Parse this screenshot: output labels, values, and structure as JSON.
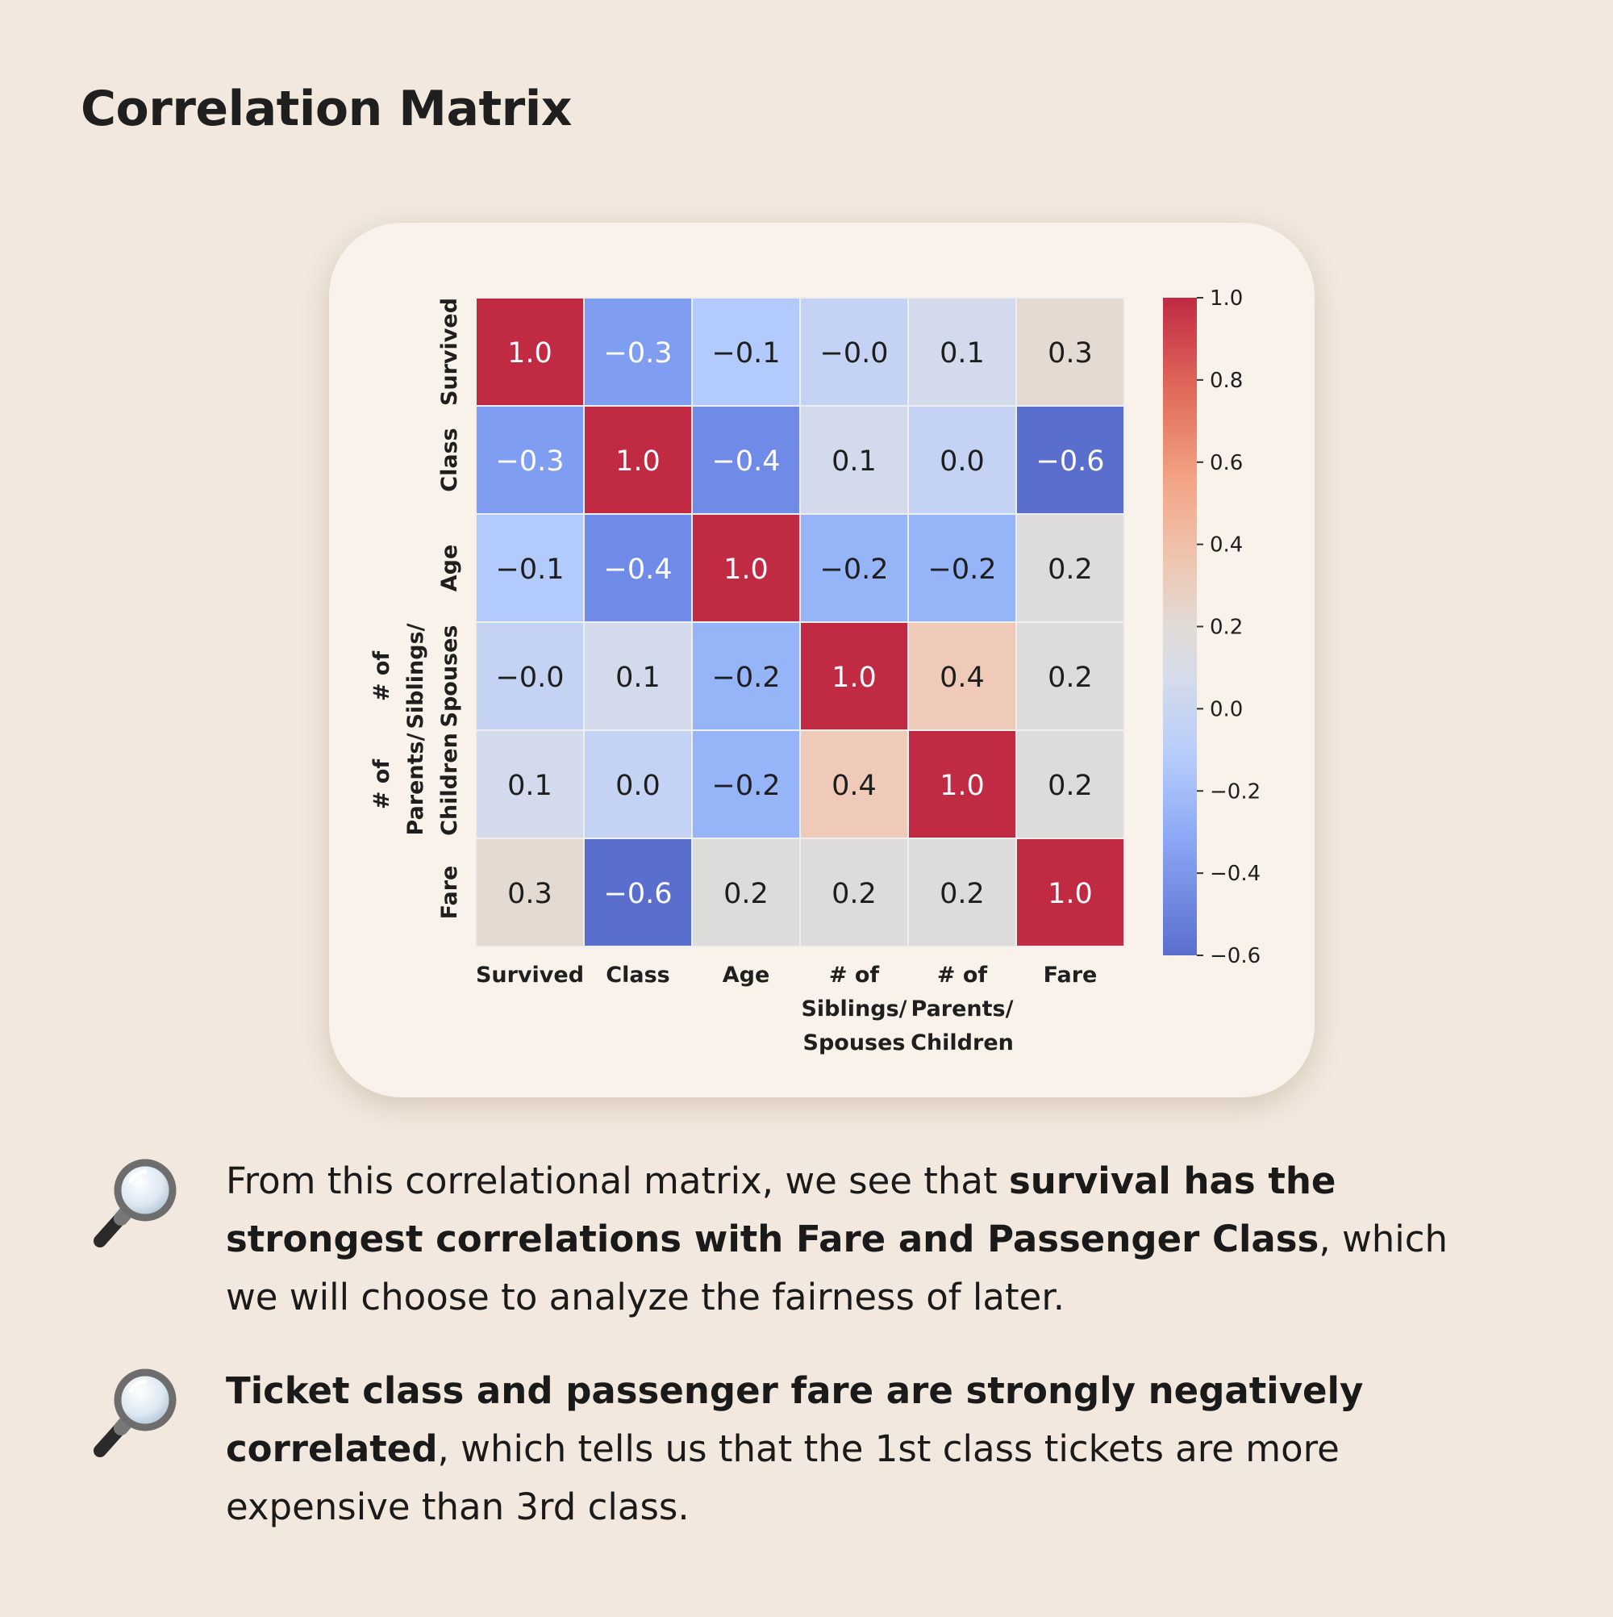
{
  "title": "Correlation Matrix",
  "chart_data": {
    "type": "heatmap",
    "title": "",
    "x_labels": [
      [
        "Survived"
      ],
      [
        "Class"
      ],
      [
        "Age"
      ],
      [
        "# of",
        "Siblings/",
        "Spouses"
      ],
      [
        "# of",
        "Parents/",
        "Children"
      ],
      [
        "Fare"
      ]
    ],
    "y_labels": [
      [
        "Survived"
      ],
      [
        "Class"
      ],
      [
        "Age"
      ],
      [
        "# of",
        "Siblings/",
        "Spouses"
      ],
      [
        "# of",
        "Parents/",
        "Children"
      ],
      [
        "Fare"
      ]
    ],
    "values": [
      [
        1.0,
        -0.3,
        -0.1,
        -0.0,
        0.1,
        0.3
      ],
      [
        -0.3,
        1.0,
        -0.4,
        0.1,
        0.0,
        -0.6
      ],
      [
        -0.1,
        -0.4,
        1.0,
        -0.2,
        -0.2,
        0.2
      ],
      [
        -0.0,
        0.1,
        -0.2,
        1.0,
        0.4,
        0.2
      ],
      [
        0.1,
        0.0,
        -0.2,
        0.4,
        1.0,
        0.2
      ],
      [
        0.3,
        -0.6,
        0.2,
        0.2,
        0.2,
        1.0
      ]
    ],
    "value_labels": [
      [
        "1.0",
        "−0.3",
        "−0.1",
        "−0.0",
        "0.1",
        "0.3"
      ],
      [
        "−0.3",
        "1.0",
        "−0.4",
        "0.1",
        "0.0",
        "−0.6"
      ],
      [
        "−0.1",
        "−0.4",
        "1.0",
        "−0.2",
        "−0.2",
        "0.2"
      ],
      [
        "−0.0",
        "0.1",
        "−0.2",
        "1.0",
        "0.4",
        "0.2"
      ],
      [
        "0.1",
        "0.0",
        "−0.2",
        "0.4",
        "1.0",
        "0.2"
      ],
      [
        "0.3",
        "−0.6",
        "0.2",
        "0.2",
        "0.2",
        "1.0"
      ]
    ],
    "colormap": "coolwarm",
    "vmin": -0.6,
    "vmax": 1.0,
    "colorbar_ticks": [
      1.0,
      0.8,
      0.6,
      0.4,
      0.2,
      0.0,
      -0.2,
      -0.4,
      -0.6
    ],
    "colorbar_tick_labels": [
      "1.0",
      "0.8",
      "0.6",
      "0.4",
      "0.2",
      "0.0",
      "−0.2",
      "−0.4",
      "−0.6"
    ],
    "colors": {
      "low": "#5a6fcd",
      "mid": "#dedcdb",
      "high": "#c02a43"
    }
  },
  "notes": [
    {
      "icon": "magnifying-glass-icon",
      "lead": "From this correlational matrix, we see that ",
      "bold": "survival has the strongest correlations with Fare and Passenger Class",
      "tail": ", which we will choose to analyze the fairness of later."
    },
    {
      "icon": "magnifying-glass-icon",
      "lead": "",
      "bold": "Ticket class and passenger fare are strongly negatively correlated",
      "tail": ", which tells us that the 1st class tickets are more expensive than 3rd class."
    }
  ]
}
